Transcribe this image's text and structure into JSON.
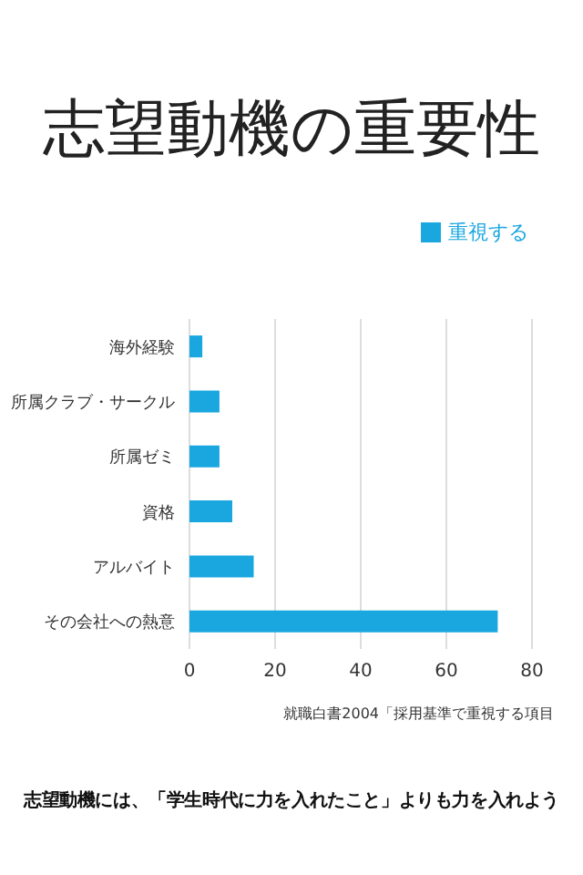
{
  "chart_data": {
    "type": "bar",
    "orientation": "horizontal",
    "title": "志望動機の重要性",
    "categories": [
      "海外経験",
      "所属クラブ・サークル",
      "所属ゼミ",
      "資格",
      "アルバイト",
      "その会社への熱意"
    ],
    "series": [
      {
        "name": "重視する",
        "color": "#1aa7e0",
        "values": [
          3,
          7,
          7,
          10,
          15,
          72
        ]
      }
    ],
    "xlim": [
      0,
      80
    ],
    "xticks": [
      0,
      20,
      40,
      60,
      80
    ],
    "grid": "x",
    "legend": "top right",
    "annotations": [
      "就職白書2004「採用基準で重視する項目",
      "志望動機には、「学生時代に力を入れたこと」よりも力を入れよう"
    ]
  }
}
